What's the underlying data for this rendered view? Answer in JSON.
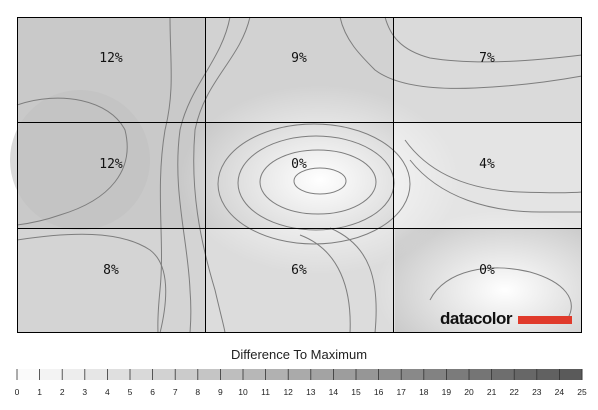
{
  "chart_data": {
    "type": "heatmap",
    "rows": 3,
    "cols": 3,
    "values": [
      [
        "12%",
        "9%",
        "7%"
      ],
      [
        "12%",
        "0%",
        "4%"
      ],
      [
        "8%",
        "6%",
        "0%"
      ]
    ],
    "legend": {
      "title": "Difference To Maximum",
      "min": 0,
      "max": 25,
      "ticks": [
        "0",
        "1",
        "2",
        "3",
        "4",
        "5",
        "6",
        "7",
        "8",
        "9",
        "10",
        "11",
        "12",
        "13",
        "14",
        "15",
        "16",
        "17",
        "18",
        "19",
        "20",
        "21",
        "22",
        "23",
        "24",
        "25"
      ]
    },
    "colors": {
      "low": "#fafafa",
      "high": "#5a5a5a",
      "contour": "#7d7d7d",
      "grid": "#000000"
    }
  },
  "brand": {
    "logo_text": "datacolor",
    "logo_bar_color": "#e03a2b"
  }
}
